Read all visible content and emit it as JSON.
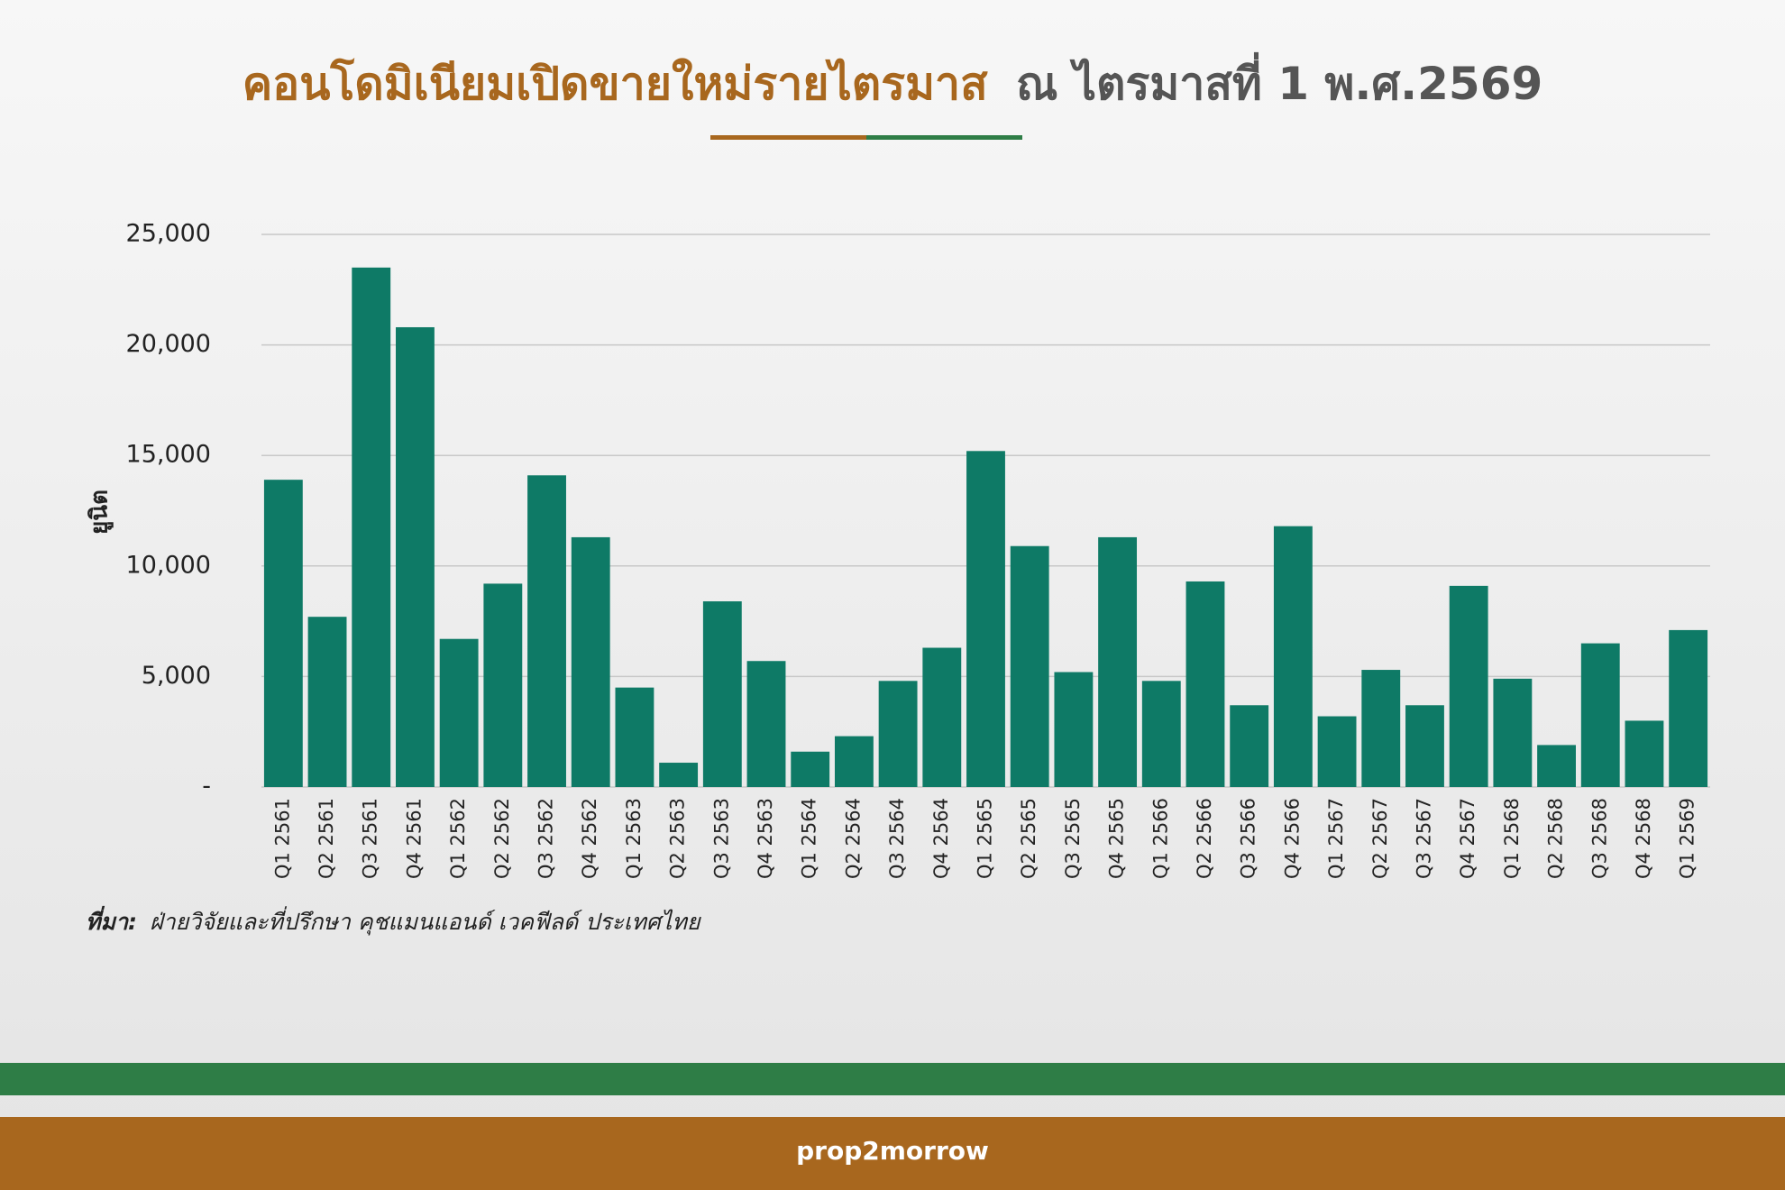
{
  "chart_data": {
    "type": "bar",
    "title_parts": [
      "คอนโดมิเนียมเปิดขายใหม่รายไตรมาส",
      "ณ ไตรมาสที่ 1 พ.ศ.2569"
    ],
    "y_label": "ยูนิต",
    "categories": [
      "Q1 2561",
      "Q2 2561",
      "Q3 2561",
      "Q4 2561",
      "Q1 2562",
      "Q2 2562",
      "Q3 2562",
      "Q4 2562",
      "Q1 2563",
      "Q2 2563",
      "Q3 2563",
      "Q4 2563",
      "Q1 2564",
      "Q2 2564",
      "Q3 2564",
      "Q4 2564",
      "Q1 2565",
      "Q2 2565",
      "Q3 2565",
      "Q4 2565",
      "Q1 2566",
      "Q2 2566",
      "Q3 2566",
      "Q4 2566",
      "Q1 2567",
      "Q2 2567",
      "Q3 2567",
      "Q4 2567",
      "Q1 2568",
      "Q2 2568",
      "Q3 2568",
      "Q4 2568",
      "Q1 2569"
    ],
    "values": [
      13900,
      7700,
      23500,
      20800,
      6700,
      9200,
      14100,
      11300,
      4500,
      1100,
      8400,
      5700,
      1600,
      2300,
      4800,
      6300,
      15200,
      10900,
      5200,
      11300,
      4800,
      9300,
      3700,
      11800,
      3200,
      5300,
      3700,
      9100,
      4900,
      1900,
      6500,
      3000,
      7100
    ],
    "color": "#0e7a66",
    "ylim": [
      0,
      25000
    ],
    "yticks": [
      {
        "value": 0,
        "label": "-"
      },
      {
        "value": 5000,
        "label": "5,000"
      },
      {
        "value": 10000,
        "label": "10,000"
      },
      {
        "value": 15000,
        "label": "15,000"
      },
      {
        "value": 20000,
        "label": "20,000"
      },
      {
        "value": 25000,
        "label": "25,000"
      }
    ],
    "grid": true,
    "source_label": "ที่มา:",
    "source": "ฝ่ายวิจัยและที่ปรึกษา คุชแมนแอนด์ เวคฟีลด์ ประเทศไทย",
    "logo": "prop2morrow"
  }
}
